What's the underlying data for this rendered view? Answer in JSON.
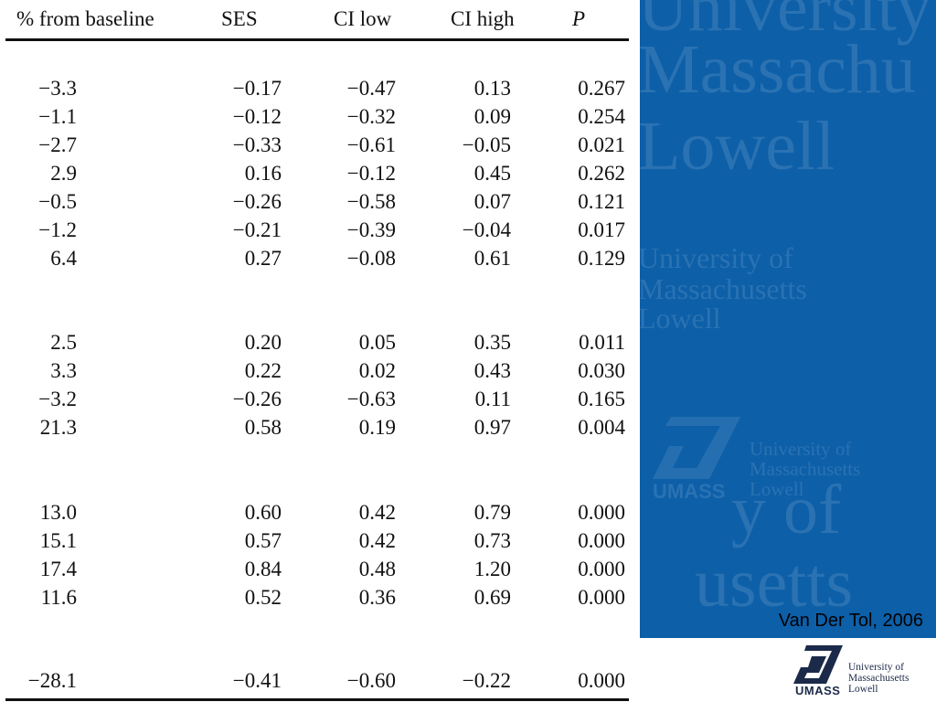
{
  "table": {
    "headers": [
      "% from baseline",
      "SES",
      "CI low",
      "CI high",
      "P"
    ],
    "groups": [
      [
        [
          "−3.3",
          "−0.17",
          "−0.47",
          "0.13",
          "0.267"
        ],
        [
          "−1.1",
          "−0.12",
          "−0.32",
          "0.09",
          "0.254"
        ],
        [
          "−2.7",
          "−0.33",
          "−0.61",
          "−0.05",
          "0.021"
        ],
        [
          "2.9",
          "0.16",
          "−0.12",
          "0.45",
          "0.262"
        ],
        [
          "−0.5",
          "−0.26",
          "−0.58",
          "0.07",
          "0.121"
        ],
        [
          "−1.2",
          "−0.21",
          "−0.39",
          "−0.04",
          "0.017"
        ],
        [
          "6.4",
          "0.27",
          "−0.08",
          "0.61",
          "0.129"
        ]
      ],
      [
        [
          "2.5",
          "0.20",
          "0.05",
          "0.35",
          "0.011"
        ],
        [
          "3.3",
          "0.22",
          "0.02",
          "0.43",
          "0.030"
        ],
        [
          "−3.2",
          "−0.26",
          "−0.63",
          "0.11",
          "0.165"
        ],
        [
          "21.3",
          "0.58",
          "0.19",
          "0.97",
          "0.004"
        ]
      ],
      [
        [
          "13.0",
          "0.60",
          "0.42",
          "0.79",
          "0.000"
        ],
        [
          "15.1",
          "0.57",
          "0.42",
          "0.73",
          "0.000"
        ],
        [
          "17.4",
          "0.84",
          "0.48",
          "1.20",
          "0.000"
        ],
        [
          "11.6",
          "0.52",
          "0.36",
          "0.69",
          "0.000"
        ]
      ],
      [
        [
          "−28.1",
          "−0.41",
          "−0.60",
          "−0.22",
          "0.000"
        ]
      ]
    ]
  },
  "citation": "Van Der Tol, 2006",
  "watermark": {
    "line1": "University",
    "line2": "Massachu",
    "line3": "Lowell",
    "mid1": "University of",
    "mid2": "Massachusetts",
    "mid3": "Lowell",
    "logo_l1": "University of",
    "logo_l2": "Massachusetts",
    "logo_l3": "Lowell",
    "umass": "UMASS",
    "big4": "y of",
    "big5": "usetts"
  },
  "logo": {
    "umass": "UMASS",
    "line1": "University of",
    "line2": "Massachusetts",
    "line3": "Lowell"
  },
  "colors": {
    "panel_blue": "#0d5fa8",
    "logo_navy": "#1c2a4a"
  }
}
